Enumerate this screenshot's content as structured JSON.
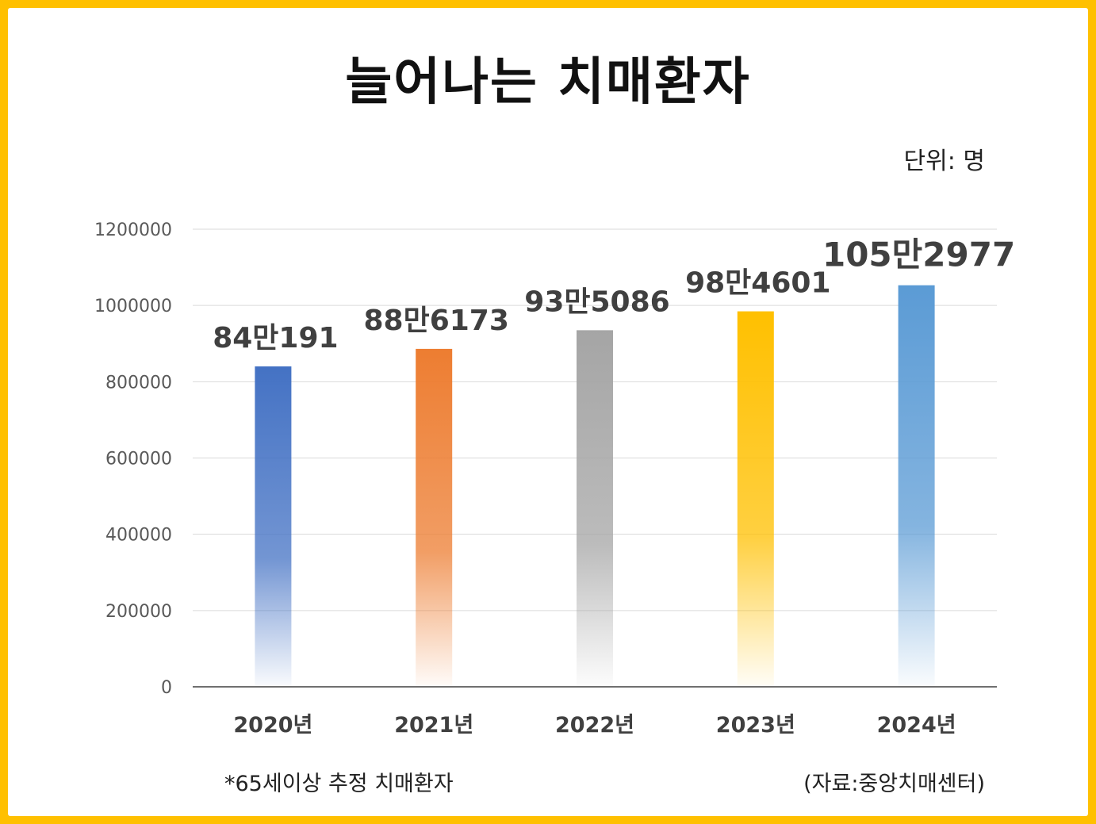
{
  "title": "늘어나는 치매환자",
  "unit_label": "단위: 명",
  "footnote": "*65세이상 추정 치매환자",
  "source": "(자료:중앙치매센터)",
  "chart_data": {
    "type": "bar",
    "categories": [
      "2020년",
      "2021년",
      "2022년",
      "2023년",
      "2024년"
    ],
    "values": [
      840191,
      886173,
      935086,
      984601,
      1052977
    ],
    "data_labels": [
      "84만191",
      "88만6173",
      "93만5086",
      "98만4601",
      "105만2977"
    ],
    "bar_colors": [
      "#4472C4",
      "#ED7D31",
      "#A5A5A5",
      "#FFC000",
      "#5B9BD5"
    ],
    "yticks": [
      0,
      200000,
      400000,
      600000,
      800000,
      1000000,
      1200000
    ],
    "ylim": [
      0,
      1200000
    ],
    "grid": true,
    "legend": "none"
  }
}
